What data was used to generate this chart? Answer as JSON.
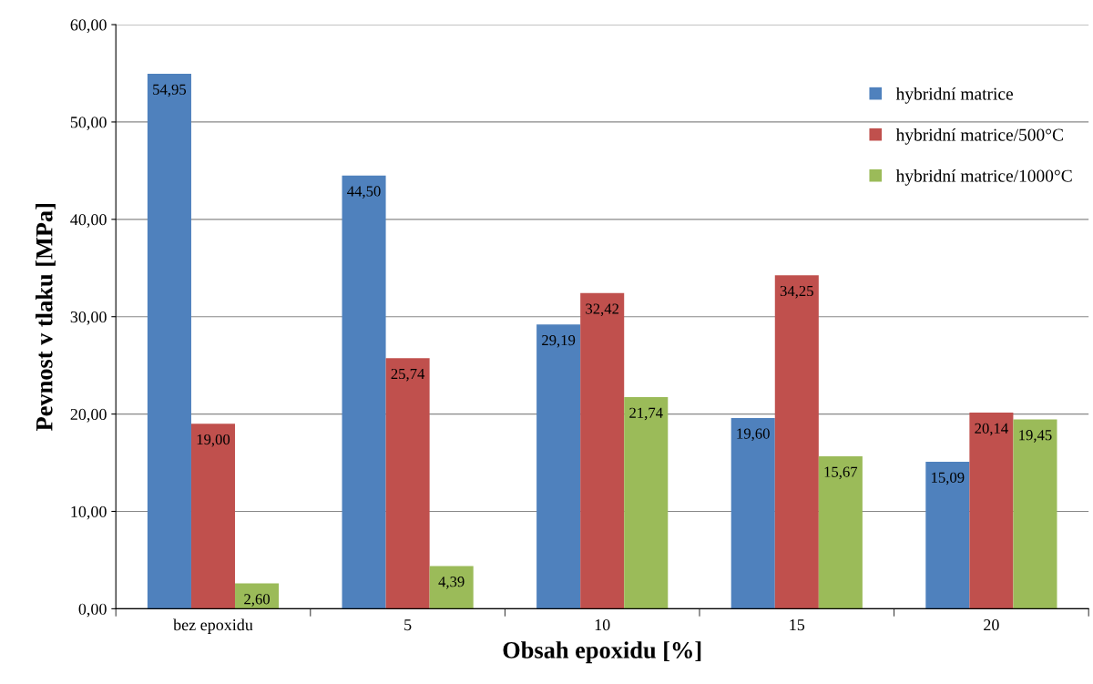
{
  "chart_data": {
    "type": "bar",
    "xlabel": "Obsah epoxidu [%]",
    "ylabel": "Pevnost v tlaku [MPa]",
    "categories": [
      "bez epoxidu",
      "5",
      "10",
      "15",
      "20"
    ],
    "series": [
      {
        "name": "hybridní matrice",
        "color": "#4f81bd",
        "values": [
          54.95,
          44.5,
          29.19,
          19.6,
          15.09
        ],
        "value_labels": [
          "54,95",
          "44,50",
          "29,19",
          "19,60",
          "15,09"
        ]
      },
      {
        "name": "hybridní matrice/500°C",
        "color": "#c0504d",
        "values": [
          19.0,
          25.74,
          32.42,
          34.25,
          20.14
        ],
        "value_labels": [
          "19,00",
          "25,74",
          "32,42",
          "34,25",
          "20,14"
        ]
      },
      {
        "name": "hybridní matrice/1000°C",
        "color": "#9bbb59",
        "values": [
          2.6,
          4.39,
          21.74,
          15.67,
          19.45
        ],
        "value_labels": [
          "2,60",
          "4,39",
          "21,74",
          "15,67",
          "19,45"
        ]
      }
    ],
    "ylim": [
      0,
      60
    ],
    "yticks": [
      {
        "value": 0,
        "label": "0,00"
      },
      {
        "value": 10,
        "label": "10,00"
      },
      {
        "value": 20,
        "label": "20,00"
      },
      {
        "value": 30,
        "label": "30,00"
      },
      {
        "value": 40,
        "label": "40,00"
      },
      {
        "value": 50,
        "label": "50,00"
      },
      {
        "value": 60,
        "label": "60,00"
      }
    ],
    "grid": "y",
    "legend": "top right"
  }
}
